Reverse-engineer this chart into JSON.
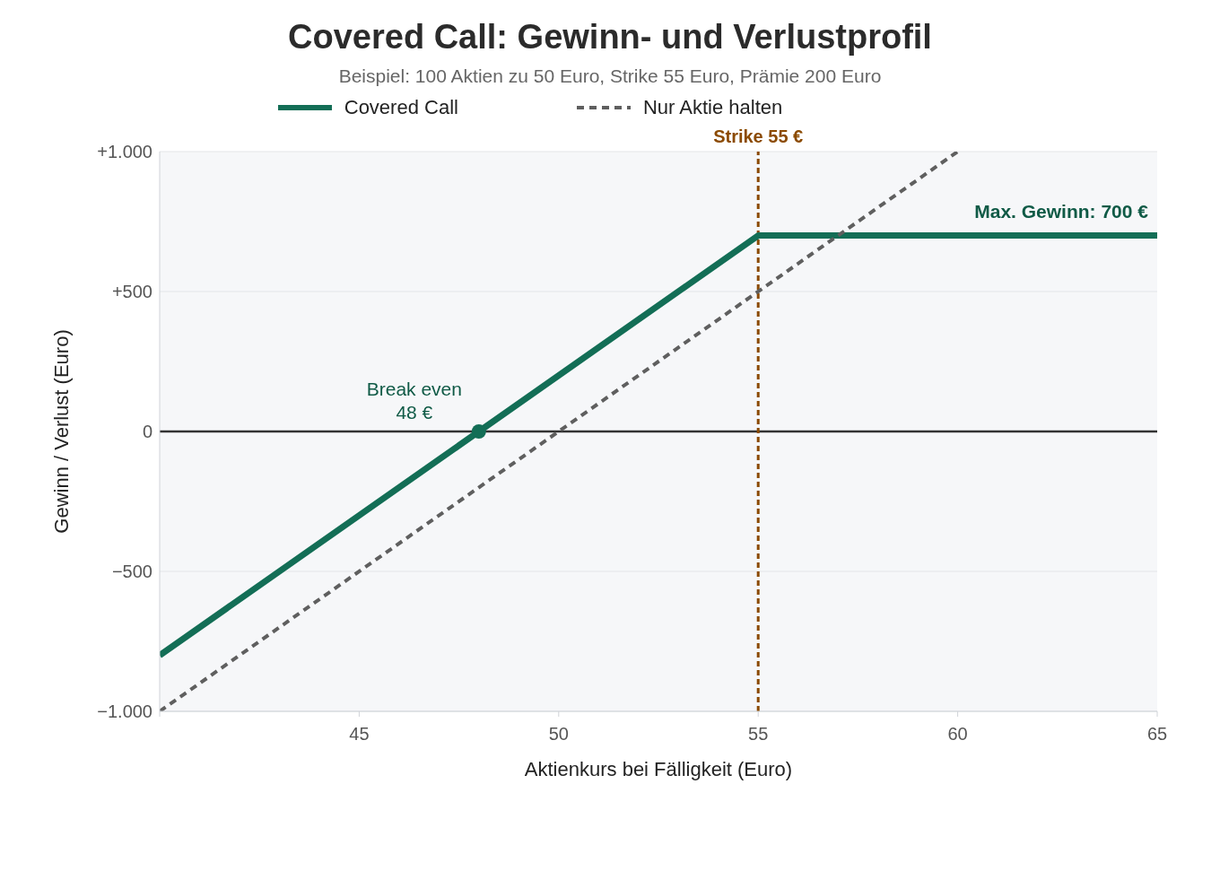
{
  "chart_data": {
    "type": "line",
    "title": "Covered Call: Gewinn- und Verlustprofil",
    "subtitle": "Beispiel: 100 Aktien zu 50 Euro, Strike 55 Euro, Prämie 200 Euro",
    "xlabel": "Aktienkurs bei Fälligkeit (Euro)",
    "ylabel": "Gewinn / Verlust (Euro)",
    "series": [
      {
        "name": "Covered Call",
        "color": "#136e56",
        "x": [
          40,
          55,
          65
        ],
        "values": [
          -800,
          700,
          700
        ],
        "line_style": "solid"
      },
      {
        "name": "Nur Aktie halten",
        "color": "#5f5f5f",
        "x": [
          40,
          60
        ],
        "values": [
          -1000,
          1000
        ],
        "line_style": "dashed"
      },
      {
        "type": "scatter",
        "color": "#136e56",
        "x": [
          48
        ],
        "values": [
          0
        ],
        "marker": "circle"
      }
    ],
    "xlim": [
      40,
      65
    ],
    "xticks": [
      {
        "value": 40,
        "label": null
      },
      45,
      50,
      55,
      60,
      65
    ],
    "ylim": [
      -1000,
      1000
    ],
    "yticks": [
      {
        "value": -1000,
        "label": "−1.000"
      },
      {
        "value": -500,
        "label": "−500"
      },
      0,
      {
        "value": 500,
        "label": "+500"
      },
      {
        "value": 1000,
        "label": "+1.000"
      }
    ],
    "grid": "y",
    "legend": "top",
    "ref_lines": [
      {
        "axis": "y",
        "value": 0,
        "color": "#333333",
        "line_style": "solid"
      },
      {
        "axis": "x",
        "value": 55,
        "label": "Strike 55 €",
        "color": "#8b4a00",
        "line_style": "dashed"
      }
    ],
    "annotations": [
      {
        "text": "Break even\n48 €",
        "x": 48,
        "y": 0
      },
      {
        "text": "Max. Gewinn: 700 €",
        "x": 65,
        "y": 700
      }
    ]
  }
}
